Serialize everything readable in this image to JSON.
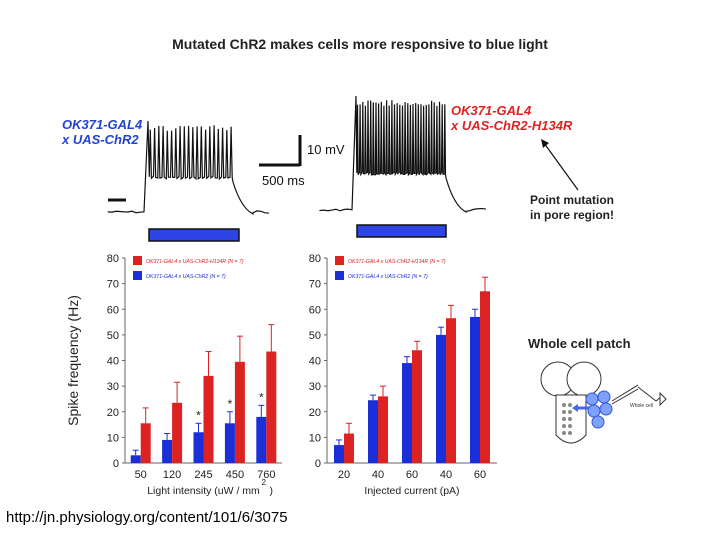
{
  "slide": {
    "title": "Mutated ChR2 makes cells more responsive to blue light",
    "url": "http://jn.physiology.org/content/101/6/3075"
  },
  "traces": {
    "left_label_line1": "OK371-GAL4",
    "left_label_line2": "x UAS-ChR2",
    "right_label_line1": "OK371-GAL4",
    "right_label_line2": "x UAS-ChR2-H134R",
    "scale_voltage": "10 mV",
    "scale_time": "500 ms"
  },
  "annotations": {
    "mutation_line1": "Point mutation",
    "mutation_line2": "in pore region!",
    "patch_title": "Whole cell patch",
    "patch_sublabel": "Whole cell"
  },
  "colors": {
    "red": "#dd2222",
    "blue": "#1a2fd8",
    "black": "#111111"
  },
  "chart_data": [
    {
      "type": "bar",
      "title": "",
      "xlabel": "Light intensity (uW / mm",
      "xlabel_sup": "2",
      "ylabel": "Spike frequency (Hz)",
      "ylim": [
        0,
        80
      ],
      "yticks": [
        0,
        10,
        20,
        30,
        40,
        50,
        60,
        70,
        80
      ],
      "categories": [
        "50",
        "120",
        "245",
        "450",
        "760"
      ],
      "legend": [
        "OK371-GAL4 x UAS-ChR2-H134R (N = 7)",
        "OK371-GAL4 x UAS-ChR2 (N = 7)"
      ],
      "series": [
        {
          "name": "OK371-GAL4 x UAS-ChR2 (N = 7)",
          "color": "blue",
          "values": [
            3,
            9,
            12,
            15.5,
            18
          ],
          "errors": [
            2,
            2.5,
            3.5,
            4.5,
            4.5
          ]
        },
        {
          "name": "OK371-GAL4 x UAS-ChR2-H134R (N = 7)",
          "color": "red",
          "values": [
            15.5,
            23.5,
            34,
            39.5,
            43.5
          ],
          "errors": [
            6,
            8,
            9.5,
            10,
            10.5
          ]
        }
      ],
      "significance": [
        "",
        "",
        "*",
        "*",
        "*"
      ]
    },
    {
      "type": "bar",
      "title": "",
      "xlabel": "Injected current (pA)",
      "ylabel": "",
      "ylim": [
        0,
        80
      ],
      "yticks": [
        0,
        10,
        20,
        30,
        40,
        50,
        60,
        70,
        80
      ],
      "categories": [
        "20",
        "40",
        "60",
        "40",
        "60"
      ],
      "legend": [
        "OK371-GAL4 x UAS-ChR2-H134R (N = 7)",
        "OK371-GAL4 x UAS-ChR2 (N = 7)"
      ],
      "series": [
        {
          "name": "OK371-GAL4 x UAS-ChR2 (N = 7)",
          "color": "blue",
          "values": [
            7,
            24.5,
            39,
            50,
            57
          ],
          "errors": [
            2,
            2,
            2.5,
            3,
            3
          ]
        },
        {
          "name": "OK371-GAL4 x UAS-ChR2-H134R (N = 7)",
          "color": "red",
          "values": [
            11.5,
            26,
            44,
            56.5,
            67
          ],
          "errors": [
            4,
            4,
            3.5,
            5,
            5.5
          ]
        }
      ],
      "significance": [
        "",
        "",
        "",
        "",
        ""
      ]
    }
  ]
}
